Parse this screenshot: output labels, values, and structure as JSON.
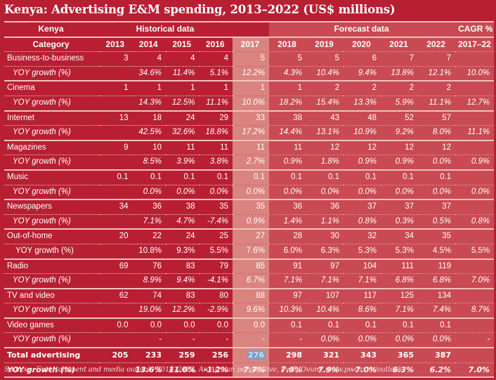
{
  "title": "Kenya: Advertising E&M spending, 2013–2022 (US$ millions)",
  "header": {
    "region": "Kenya",
    "historical": "Historical data",
    "forecast": "Forecast data",
    "cagr": "CAGR %",
    "category": "Category",
    "years": [
      "2013",
      "2014",
      "2015",
      "2016",
      "2017",
      "2018",
      "2019",
      "2020",
      "2021",
      "2022"
    ],
    "cagr_period": "2017–22"
  },
  "colors": {
    "background": "#b81f33",
    "historical": "#b81f33",
    "year_2017": "#d9847f",
    "forecast": "#c94a52",
    "rule": "#f3c1bf",
    "selection": "#7e9cc8"
  },
  "rows": [
    {
      "label": "Business-to-business",
      "values": [
        "3",
        "4",
        "4",
        "4",
        "5",
        "5",
        "5",
        "6",
        "7",
        "7"
      ],
      "cagr": "",
      "yoy_label": "YOY growth (%)",
      "yoy": [
        "",
        "34.6%",
        "11.4%",
        "5.1%",
        "12.2%",
        "4.3%",
        "10.4%",
        "9.4%",
        "13.8%",
        "12.1%"
      ],
      "yoy_cagr": "10.0%"
    },
    {
      "label": "Cinema",
      "values": [
        "1",
        "1",
        "1",
        "1",
        "1",
        "1",
        "2",
        "2",
        "2",
        "2"
      ],
      "cagr": "",
      "yoy_label": "YOY growth (%)",
      "yoy": [
        "",
        "14.3%",
        "12.5%",
        "11.1%",
        "10.0%",
        "18.2%",
        "15.4%",
        "13.3%",
        "5.9%",
        "11.1%"
      ],
      "yoy_cagr": "12.7%"
    },
    {
      "label": "Internet",
      "values": [
        "13",
        "18",
        "24",
        "29",
        "33",
        "38",
        "43",
        "48",
        "52",
        "57"
      ],
      "cagr": "",
      "yoy_label": "YOY growth (%)",
      "yoy": [
        "",
        "42.5%",
        "32.6%",
        "18.8%",
        "17.2%",
        "14.4%",
        "13.1%",
        "10.9%",
        "9.2%",
        "8.0%"
      ],
      "yoy_cagr": "11.1%"
    },
    {
      "label": "Magazines",
      "values": [
        "9",
        "10",
        "11",
        "11",
        "11",
        "11",
        "12",
        "12",
        "12",
        "12"
      ],
      "cagr": "",
      "yoy_label": "YOY growth (%)",
      "yoy": [
        "",
        "8.5%",
        "3.9%",
        "3.8%",
        "2.7%",
        "0.9%",
        "1.8%",
        "0.9%",
        "0.9%",
        "0.0%"
      ],
      "yoy_cagr": "0.9%"
    },
    {
      "label": "Music",
      "values": [
        "0.1",
        "0.1",
        "0.1",
        "0.1",
        "0.1",
        "0.1",
        "0.1",
        "0.1",
        "0.1",
        "0.1"
      ],
      "cagr": "",
      "yoy_label": "YOY growth (%)",
      "yoy": [
        "",
        "0.0%",
        "0.0%",
        "0.0%",
        "0.0%",
        "0.0%",
        "0.0%",
        "0.0%",
        "0.0%",
        "0.0%"
      ],
      "yoy_cagr": "0.0%"
    },
    {
      "label": "Newspapers",
      "values": [
        "34",
        "36",
        "38",
        "35",
        "35",
        "36",
        "36",
        "37",
        "37",
        "37"
      ],
      "cagr": "",
      "yoy_label": "YOY growth (%)",
      "yoy": [
        "",
        "7.1%",
        "4.7%",
        "-7.4%",
        "0.9%",
        "1.4%",
        "1.1%",
        "0.8%",
        "0.3%",
        "0.5%"
      ],
      "yoy_cagr": "0.8%"
    },
    {
      "label": "Out-of-home",
      "values": [
        "20",
        "22",
        "24",
        "25",
        "27",
        "28",
        "30",
        "32",
        "34",
        "35"
      ],
      "cagr": "",
      "yoy_label": "YOY growth (%)",
      "yoy": [
        "",
        "10.8%",
        "9.3%",
        "5.5%",
        "7.6%",
        "6.0%",
        "6.3%",
        "5.3%",
        "5.3%",
        "4.5%"
      ],
      "yoy_cagr": "5.5%",
      "yoy_plain": true
    },
    {
      "label": "Radio",
      "values": [
        "69",
        "76",
        "83",
        "79",
        "85",
        "91",
        "97",
        "104",
        "111",
        "119"
      ],
      "cagr": "",
      "yoy_label": "YOY growth (%)",
      "yoy": [
        "",
        "8.9%",
        "9.4%",
        "-4.1%",
        "6.7%",
        "7.1%",
        "7.1%",
        "7.1%",
        "6.8%",
        "6.8%"
      ],
      "yoy_cagr": "7.0%"
    },
    {
      "label": "TV and video",
      "values": [
        "62",
        "74",
        "83",
        "80",
        "88",
        "97",
        "107",
        "117",
        "125",
        "134"
      ],
      "cagr": "",
      "yoy_label": "YOY growth (%)",
      "yoy": [
        "",
        "19.0%",
        "12.2%",
        "-2.9%",
        "9.6%",
        "10.3%",
        "10.4%",
        "8.6%",
        "7.1%",
        "7.4%"
      ],
      "yoy_cagr": "8.7%"
    },
    {
      "label": "Video games",
      "values": [
        "0.0",
        "0.0",
        "0.0",
        "0.0",
        "0.0",
        "0.1",
        "0.1",
        "0.1",
        "0.1",
        "0.1"
      ],
      "cagr": "",
      "yoy_label": "YOY growth (%)",
      "yoy": [
        "",
        "-",
        "-",
        "-",
        "-",
        "-",
        "0.0%",
        "0.0%",
        "0.0%",
        "0.0%"
      ],
      "yoy_cagr": "-"
    }
  ],
  "total": {
    "label": "Total advertising",
    "values": [
      "205",
      "233",
      "259",
      "256",
      "276",
      "298",
      "321",
      "343",
      "365",
      "387"
    ],
    "cagr": "",
    "selected_index": 4,
    "yoy_label": "YOY growth (%)",
    "yoy": [
      "",
      "13.6%",
      "11.0%",
      "-1.2%",
      "7.7%",
      "7.9%",
      "7.9%",
      "7.0%",
      "6.3%",
      "6.2%"
    ],
    "yoy_cagr": "7.0%"
  },
  "source": "Sources: Entertainment and media outlook: 2018–2022, An African perspective, PwC, Ovum, www.pwc.com/outlook"
}
